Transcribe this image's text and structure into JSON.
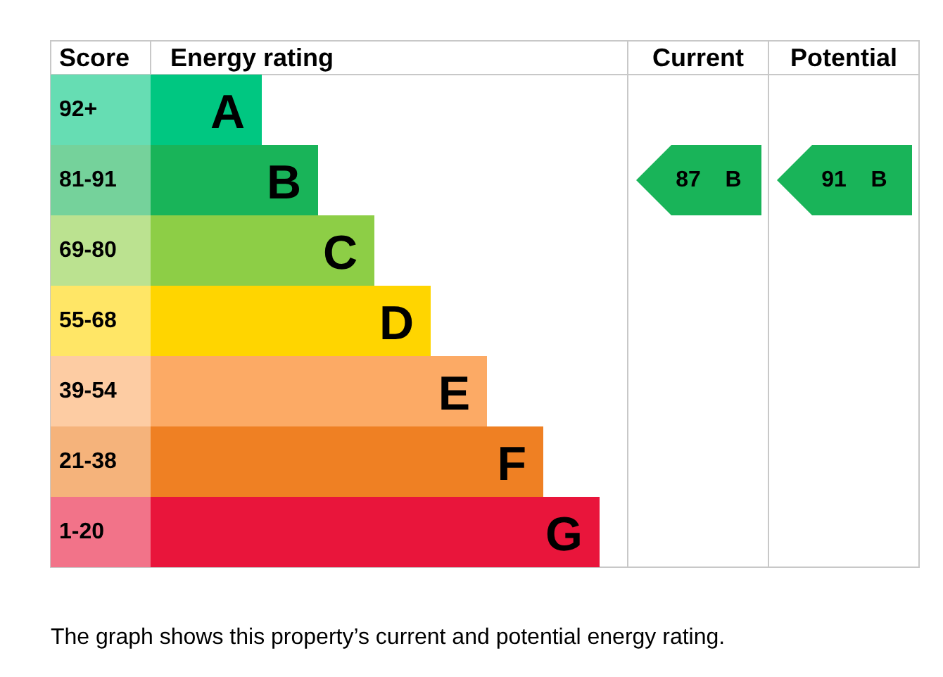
{
  "chart_data": {
    "type": "other",
    "xlabel": "Energy rating",
    "ylabel": "Score",
    "categories": [
      "A",
      "B",
      "C",
      "D",
      "E",
      "F",
      "G"
    ],
    "y_categories": [
      "92+",
      "81-91",
      "69-80",
      "55-68",
      "39-54",
      "21-38",
      "1-20"
    ],
    "colors": [
      "#00c781",
      "#19b459",
      "#8dce46",
      "#ffd500",
      "#fcaa65",
      "#ef8023",
      "#e9153b"
    ],
    "series": [
      {
        "name": "Current",
        "values": [
          null,
          87,
          null,
          null,
          null,
          null,
          null
        ]
      },
      {
        "name": "Potential",
        "values": [
          null,
          91,
          null,
          null,
          null,
          null,
          null
        ]
      }
    ],
    "data_labels": true,
    "annotations": [
      "The graph shows this property’s current and potential energy rating."
    ]
  }
}
